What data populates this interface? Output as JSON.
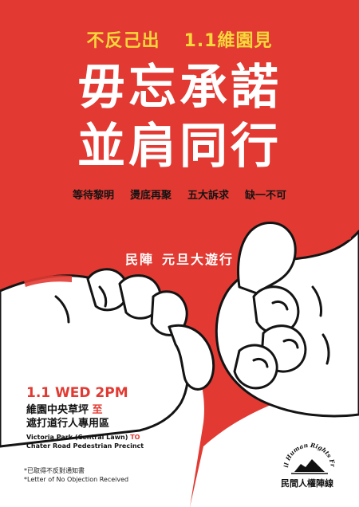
{
  "poster": {
    "tagline": {
      "left": "不反己出",
      "right": "1.1維園見"
    },
    "headline": {
      "line1": "毋忘承諾",
      "line2": "並肩同行"
    },
    "slogans": [
      "等待黎明",
      "燙底再聚",
      "五大訴求",
      "缺一不可"
    ],
    "march": {
      "org": "民陣",
      "title": "元旦大遊行"
    },
    "event": {
      "datetime": "1.1 WED 2PM",
      "route_zh_from": "維園中央草坪",
      "route_zh_to_word": "至",
      "route_zh_to": "遮打道行人專用區",
      "route_en_from": "Victoria Park (Central Lawn)",
      "route_en_to_word": "TO",
      "route_en_to": "Chater Road Pedestrian Precinct"
    },
    "notes": {
      "zh": "*已取得不反對通知書",
      "en": "*Letter of No Objection Received"
    },
    "organizer": {
      "arc_text": "Civil Human Rights Front",
      "name": "民間人權陣線"
    },
    "colors": {
      "red": "#e23a32",
      "yellow": "#f7d83a",
      "white": "#ffffff",
      "ink": "#141414"
    },
    "icons": [
      "pinky-promise-hands-icon",
      "civil-human-rights-front-logo-icon"
    ]
  }
}
